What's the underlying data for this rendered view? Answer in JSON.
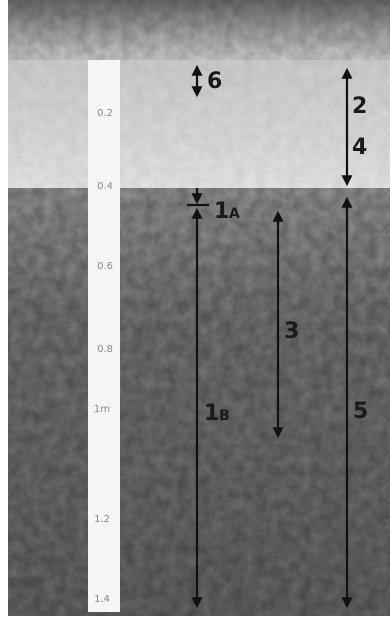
{
  "ruler": {
    "labels": [
      "0.2",
      "0.4",
      "0.6",
      "0.8",
      "1m",
      "1.2",
      "1.4"
    ]
  },
  "markers": [
    {
      "label": "6"
    },
    {
      "label": "2"
    },
    {
      "label": "4"
    },
    {
      "label": "1",
      "sub": "A"
    },
    {
      "label": "1",
      "sub": "B"
    },
    {
      "label": "3"
    },
    {
      "label": "5"
    }
  ]
}
